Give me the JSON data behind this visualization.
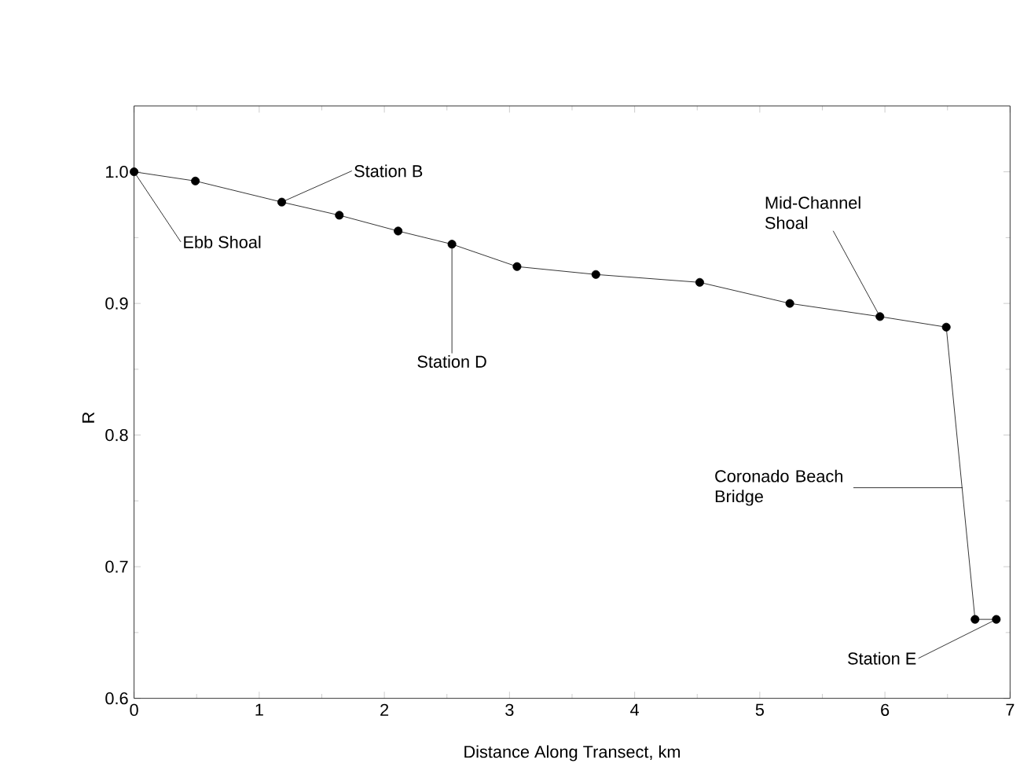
{
  "chart_data": {
    "type": "line",
    "xlabel": "Distance Along Transect, km",
    "ylabel": "R",
    "x": [
      0,
      0.49,
      1.18,
      1.64,
      2.11,
      2.54,
      3.06,
      3.69,
      4.52,
      5.24,
      5.96,
      6.49,
      6.72,
      6.89
    ],
    "values": [
      1.0,
      0.993,
      0.977,
      0.967,
      0.955,
      0.945,
      0.928,
      0.922,
      0.916,
      0.9,
      0.89,
      0.882,
      0.66,
      0.66
    ],
    "color": "#000000",
    "marker": "circle",
    "line_style": "solid",
    "xlim": [
      0,
      7
    ],
    "xticks": [
      0,
      1,
      2,
      3,
      4,
      5,
      6,
      7
    ],
    "ylim": [
      0.6,
      1.05
    ],
    "yticks": [
      {
        "value": 0.6,
        "label": "0.6"
      },
      {
        "value": 0.7,
        "label": "0.7"
      },
      {
        "value": 0.8,
        "label": "0.8"
      },
      {
        "value": 0.9,
        "label": "0.9"
      },
      {
        "value": 1.0,
        "label": "1.0"
      }
    ],
    "annotations": [
      {
        "text": "Ebb Shoal",
        "x": 0,
        "y": 1.0
      },
      {
        "text": "Station B",
        "x": 1.18,
        "y": 0.977
      },
      {
        "text": "Station D",
        "x": 2.54,
        "y": 0.945
      },
      {
        "text": "Mid-Channel Shoal",
        "x": 5.96,
        "y": 0.89
      },
      {
        "text": "Coronado Beach Bridge",
        "x": 6.62,
        "y": 0.76
      },
      {
        "text": "Station E",
        "x": 6.89,
        "y": 0.66
      }
    ]
  }
}
